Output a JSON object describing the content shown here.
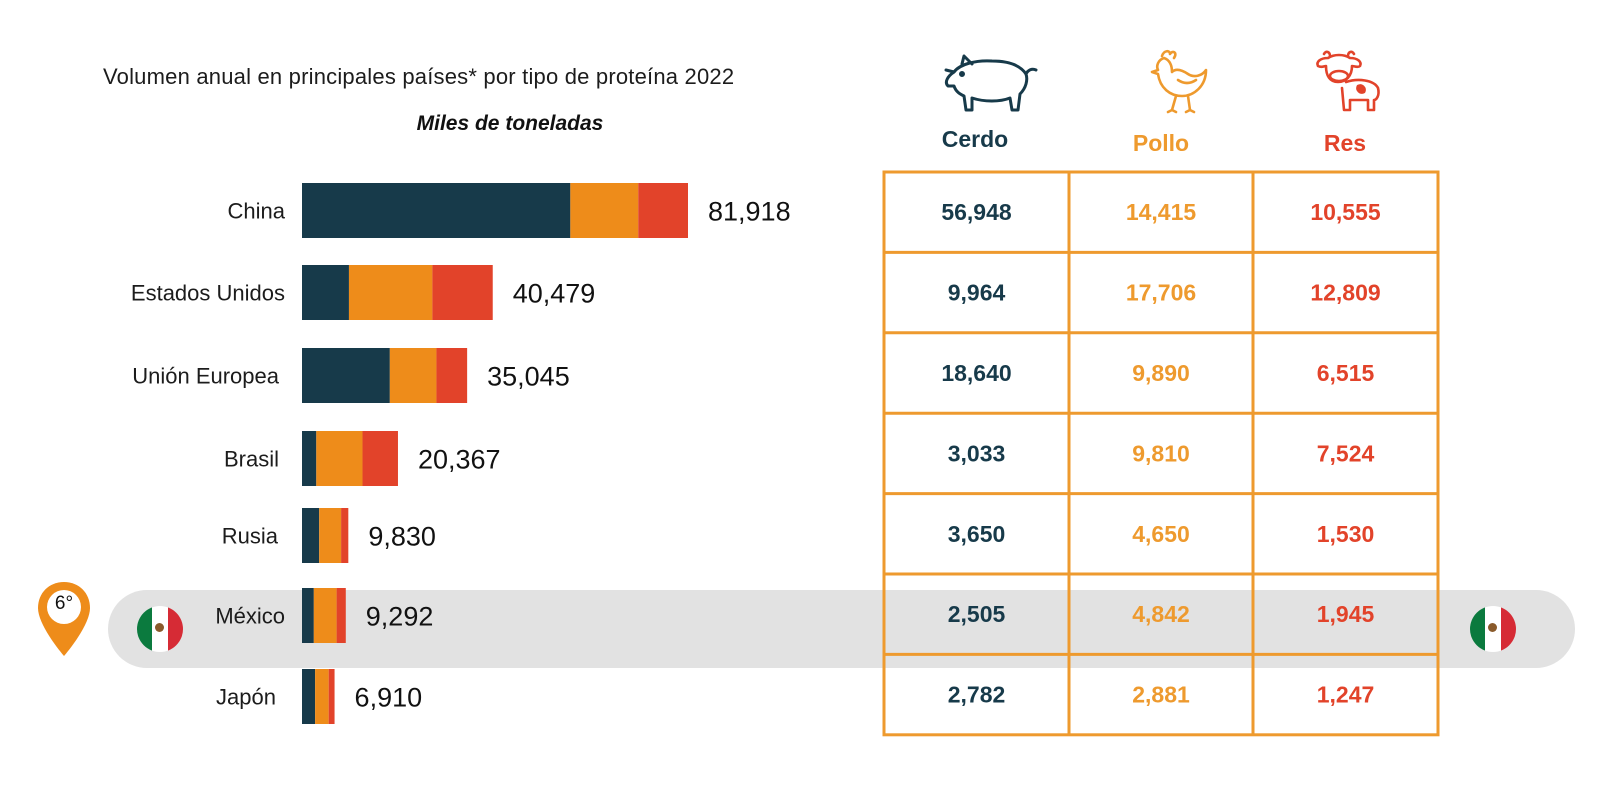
{
  "title": "Volumen anual en principales países* por tipo de proteína 2022",
  "subtitle": "Miles de toneladas",
  "colors": {
    "cerdo": "#173a4a",
    "pollo": "#ee8c1a",
    "res": "#e2432a",
    "table_border": "#ee9a2e",
    "highlight": "#e2e2e2",
    "pin": "#ee8c1a"
  },
  "highlight": {
    "country": "México",
    "rank": "6°"
  },
  "table": {
    "headers": [
      {
        "label": "Cerdo",
        "icon": "pig-icon"
      },
      {
        "label": "Pollo",
        "icon": "chicken-icon"
      },
      {
        "label": "Res",
        "icon": "cow-icon"
      }
    ]
  },
  "chart_data": {
    "type": "bar",
    "orientation": "horizontal",
    "stacked": true,
    "title": "Volumen anual en principales países* por tipo de proteína 2022",
    "subtitle": "Miles de toneladas",
    "categories": [
      "China",
      "Estados Unidos",
      "Unión Europea",
      "Brasil",
      "Rusia",
      "México",
      "Japón"
    ],
    "totals": [
      "81,918",
      "40,479",
      "35,045",
      "20,367",
      "9,830",
      "9,292",
      "6,910"
    ],
    "series": [
      {
        "name": "Cerdo",
        "values": [
          56948,
          9964,
          18640,
          3033,
          3650,
          2505,
          2782
        ],
        "labels": [
          "56,948",
          "9,964",
          "18,640",
          "3,033",
          "3,650",
          "2,505",
          "2,782"
        ]
      },
      {
        "name": "Pollo",
        "values": [
          14415,
          17706,
          9890,
          9810,
          4650,
          4842,
          2881
        ],
        "labels": [
          "14,415",
          "17,706",
          "9,890",
          "9,810",
          "4,650",
          "4,842",
          "2,881"
        ]
      },
      {
        "name": "Res",
        "values": [
          10555,
          12809,
          6515,
          7524,
          1530,
          1945,
          1247
        ],
        "labels": [
          "10,555",
          "12,809",
          "6,515",
          "7,524",
          "1,530",
          "1,945",
          "1,247"
        ]
      }
    ]
  }
}
